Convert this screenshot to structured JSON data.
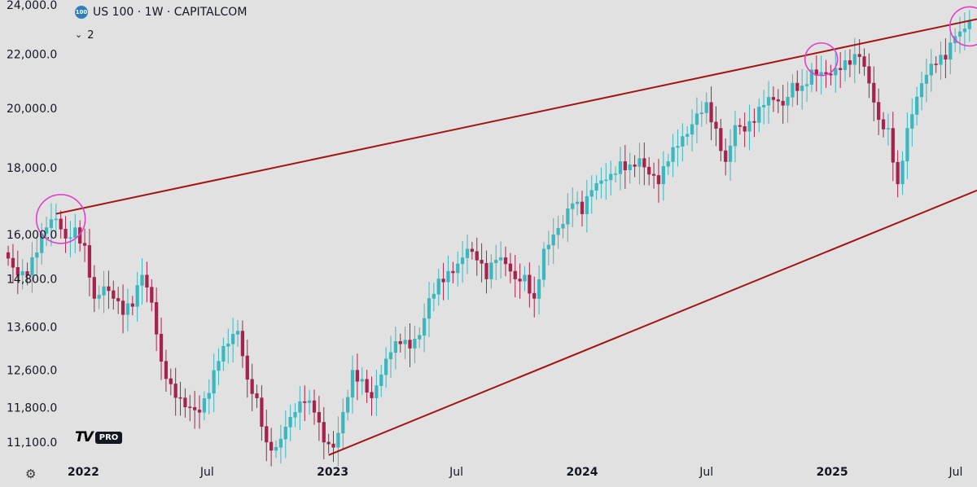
{
  "header": {
    "symbol_badge": "100",
    "title": "US 100 · 1W · CAPITALCOM",
    "indicator_count": "2"
  },
  "footer": {
    "logo_badge": "PRO"
  },
  "icons": {
    "collapse": "chevron-down-icon",
    "settings": "gear-icon"
  },
  "colors": {
    "up": "#3bb7be",
    "down": "#a6234c",
    "trendline": "#a31515",
    "highlight": "#e040c8",
    "background": "#e1e1e1"
  },
  "chart_data": {
    "type": "candlestick",
    "scale": "log",
    "ylim": [
      10800,
      24200
    ],
    "xlim": [
      "2021-09-01",
      "2025-08-01"
    ],
    "y_ticks": [
      24000,
      22000,
      20000,
      18000,
      16000,
      14800,
      13600,
      12600,
      11800,
      11100
    ],
    "y_tick_labels": [
      "24,000.0",
      "22,000.0",
      "20,000.0",
      "18,000.0",
      "16,000.0",
      "14,800.0",
      "13,600.0",
      "12,600.0",
      "11,800.0",
      "11,100.0"
    ],
    "x_ticks": [
      {
        "date": "2022-01-01",
        "label": "2022"
      },
      {
        "date": "2022-07-01",
        "label": "Jul"
      },
      {
        "date": "2023-01-01",
        "label": "2023"
      },
      {
        "date": "2023-07-01",
        "label": "Jul"
      },
      {
        "date": "2024-01-01",
        "label": "2024"
      },
      {
        "date": "2024-07-01",
        "label": "Jul"
      },
      {
        "date": "2025-01-01",
        "label": "2025"
      },
      {
        "date": "2025-07-01",
        "label": "Jul"
      }
    ],
    "weekly_close": [
      [
        "2021-09-13",
        15350
      ],
      [
        "2021-09-27",
        14900
      ],
      [
        "2021-10-11",
        14900
      ],
      [
        "2021-10-25",
        15500
      ],
      [
        "2021-11-08",
        16200
      ],
      [
        "2021-11-22",
        16450
      ],
      [
        "2021-12-06",
        15900
      ],
      [
        "2021-12-20",
        16200
      ],
      [
        "2022-01-03",
        15700
      ],
      [
        "2022-01-17",
        14300
      ],
      [
        "2022-01-31",
        14600
      ],
      [
        "2022-02-14",
        14300
      ],
      [
        "2022-02-28",
        13900
      ],
      [
        "2022-03-14",
        14100
      ],
      [
        "2022-03-28",
        14900
      ],
      [
        "2022-04-11",
        14200
      ],
      [
        "2022-04-25",
        12800
      ],
      [
        "2022-05-09",
        12300
      ],
      [
        "2022-05-23",
        12000
      ],
      [
        "2022-06-06",
        11800
      ],
      [
        "2022-06-20",
        11700
      ],
      [
        "2022-07-04",
        12100
      ],
      [
        "2022-07-18",
        12800
      ],
      [
        "2022-08-01",
        13200
      ],
      [
        "2022-08-15",
        13500
      ],
      [
        "2022-08-29",
        12400
      ],
      [
        "2022-09-12",
        12000
      ],
      [
        "2022-09-26",
        11100
      ],
      [
        "2022-10-10",
        11000
      ],
      [
        "2022-10-24",
        11400
      ],
      [
        "2022-11-07",
        11700
      ],
      [
        "2022-11-21",
        11900
      ],
      [
        "2022-12-05",
        11700
      ],
      [
        "2022-12-19",
        11100
      ],
      [
        "2023-01-02",
        11000
      ],
      [
        "2023-01-16",
        11700
      ],
      [
        "2023-01-30",
        12600
      ],
      [
        "2023-02-13",
        12400
      ],
      [
        "2023-02-27",
        12000
      ],
      [
        "2023-03-13",
        12500
      ],
      [
        "2023-03-27",
        13000
      ],
      [
        "2023-04-10",
        13200
      ],
      [
        "2023-04-24",
        13100
      ],
      [
        "2023-05-08",
        13400
      ],
      [
        "2023-05-22",
        14300
      ],
      [
        "2023-06-05",
        14800
      ],
      [
        "2023-06-19",
        15000
      ],
      [
        "2023-07-03",
        15200
      ],
      [
        "2023-07-17",
        15600
      ],
      [
        "2023-07-31",
        15300
      ],
      [
        "2023-08-14",
        14800
      ],
      [
        "2023-08-28",
        15300
      ],
      [
        "2023-09-11",
        15200
      ],
      [
        "2023-09-25",
        14800
      ],
      [
        "2023-10-09",
        14900
      ],
      [
        "2023-10-23",
        14300
      ],
      [
        "2023-11-06",
        15600
      ],
      [
        "2023-11-20",
        16000
      ],
      [
        "2023-12-04",
        16300
      ],
      [
        "2023-12-18",
        16900
      ],
      [
        "2024-01-01",
        16600
      ],
      [
        "2024-01-15",
        17300
      ],
      [
        "2024-01-29",
        17600
      ],
      [
        "2024-02-12",
        17800
      ],
      [
        "2024-02-26",
        18200
      ],
      [
        "2024-03-11",
        18100
      ],
      [
        "2024-03-25",
        18300
      ],
      [
        "2024-04-08",
        17800
      ],
      [
        "2024-04-22",
        17500
      ],
      [
        "2024-05-06",
        18200
      ],
      [
        "2024-05-20",
        18700
      ],
      [
        "2024-06-03",
        19100
      ],
      [
        "2024-06-17",
        19800
      ],
      [
        "2024-07-01",
        20200
      ],
      [
        "2024-07-15",
        19300
      ],
      [
        "2024-07-29",
        18200
      ],
      [
        "2024-08-12",
        19400
      ],
      [
        "2024-08-26",
        19200
      ],
      [
        "2024-09-09",
        19500
      ],
      [
        "2024-09-23",
        20100
      ],
      [
        "2024-10-07",
        20300
      ],
      [
        "2024-10-21",
        20100
      ],
      [
        "2024-11-04",
        20900
      ],
      [
        "2024-11-18",
        20800
      ],
      [
        "2024-12-02",
        21400
      ],
      [
        "2024-12-16",
        21300
      ],
      [
        "2024-12-30",
        21200
      ],
      [
        "2025-01-13",
        21400
      ],
      [
        "2025-01-27",
        21600
      ],
      [
        "2025-02-10",
        21900
      ],
      [
        "2025-02-24",
        20900
      ],
      [
        "2025-03-10",
        19600
      ],
      [
        "2025-03-24",
        19300
      ],
      [
        "2025-04-07",
        17500
      ],
      [
        "2025-04-21",
        19300
      ],
      [
        "2025-05-05",
        20400
      ],
      [
        "2025-05-19",
        21200
      ],
      [
        "2025-06-02",
        21600
      ],
      [
        "2025-06-16",
        21800
      ],
      [
        "2025-06-30",
        22700
      ],
      [
        "2025-07-14",
        23000
      ],
      [
        "2025-07-21",
        23300
      ]
    ],
    "trendlines": [
      {
        "from": [
          "2021-11-22",
          16600
        ],
        "to": [
          "2025-08-01",
          23400
        ]
      },
      {
        "from": [
          "2022-12-26",
          10850
        ],
        "to": [
          "2025-08-01",
          17300
        ]
      }
    ],
    "highlights": [
      {
        "date": "2021-11-29",
        "value": 16450
      },
      {
        "date": "2024-12-16",
        "value": 21800
      },
      {
        "date": "2025-07-21",
        "value": 23100
      }
    ]
  }
}
